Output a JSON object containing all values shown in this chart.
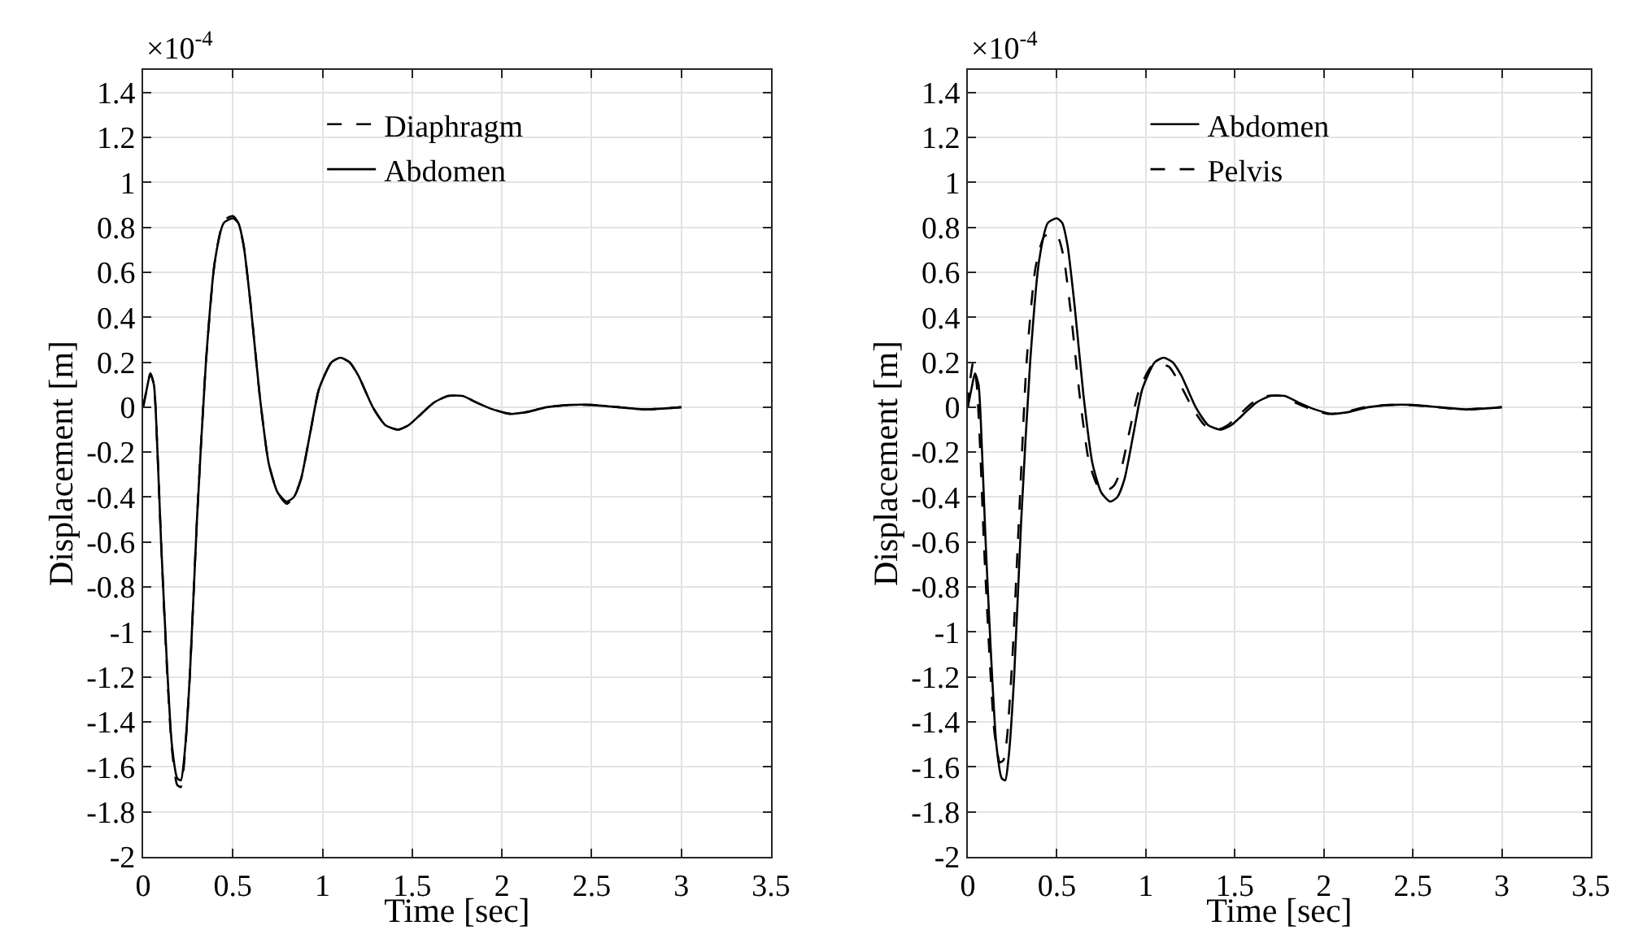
{
  "chart_data": [
    {
      "type": "line",
      "xlabel": "Time [sec]",
      "ylabel": "Displacement [m]",
      "annotations": [
        "×10$^{-4}$"
      ],
      "xlim": [
        0,
        3.5
      ],
      "xticks": [
        0,
        0.5,
        1,
        1.5,
        2,
        2.5,
        3,
        3.5
      ],
      "ylim": [
        -2,
        1.5
      ],
      "yticks": [
        -2,
        -1.8,
        -1.6,
        -1.4,
        -1.2,
        -1,
        -0.8,
        -0.6,
        -0.4,
        -0.2,
        0,
        0.2,
        0.4,
        0.6,
        0.8,
        1,
        1.2,
        1.4
      ],
      "grid": true,
      "legend": "top",
      "series": [
        {
          "name": "Diaphragm",
          "color": "#000000",
          "line_style": "dashed",
          "x": [
            0,
            0.02,
            0.04,
            0.06,
            0.08,
            0.1,
            0.13,
            0.16,
            0.19,
            0.21,
            0.23,
            0.26,
            0.3,
            0.35,
            0.4,
            0.45,
            0.5,
            0.53,
            0.56,
            0.6,
            0.65,
            0.7,
            0.75,
            0.8,
            0.84,
            0.88,
            0.93,
            0.98,
            1.05,
            1.1,
            1.15,
            1.2,
            1.28,
            1.35,
            1.42,
            1.48,
            1.55,
            1.62,
            1.7,
            1.78,
            1.86,
            1.95,
            2.05,
            2.15,
            2.25,
            2.38,
            2.5,
            2.65,
            2.8,
            3
          ],
          "values": [
            0,
            0.08,
            0.15,
            0.1,
            -0.2,
            -0.6,
            -1.12,
            -1.52,
            -1.68,
            -1.69,
            -1.57,
            -1.2,
            -0.5,
            0.2,
            0.65,
            0.83,
            0.85,
            0.82,
            0.72,
            0.45,
            0.05,
            -0.25,
            -0.38,
            -0.43,
            -0.4,
            -0.32,
            -0.12,
            0.08,
            0.2,
            0.22,
            0.2,
            0.14,
            0,
            -0.08,
            -0.1,
            -0.08,
            -0.03,
            0.02,
            0.05,
            0.05,
            0.02,
            -0.01,
            -0.03,
            -0.02,
            0,
            0.01,
            0.01,
            0,
            -0.01,
            0
          ]
        },
        {
          "name": "Abdomen",
          "color": "#000000",
          "line_style": "solid",
          "x": [
            0,
            0.02,
            0.04,
            0.06,
            0.08,
            0.1,
            0.13,
            0.16,
            0.19,
            0.21,
            0.23,
            0.26,
            0.3,
            0.35,
            0.4,
            0.45,
            0.5,
            0.53,
            0.56,
            0.6,
            0.65,
            0.7,
            0.75,
            0.8,
            0.84,
            0.88,
            0.93,
            0.98,
            1.05,
            1.1,
            1.15,
            1.2,
            1.28,
            1.35,
            1.42,
            1.48,
            1.55,
            1.62,
            1.7,
            1.78,
            1.86,
            1.95,
            2.05,
            2.15,
            2.25,
            2.38,
            2.5,
            2.65,
            2.8,
            3
          ],
          "values": [
            0,
            0.08,
            0.15,
            0.1,
            -0.2,
            -0.6,
            -1.1,
            -1.5,
            -1.65,
            -1.66,
            -1.55,
            -1.2,
            -0.5,
            0.2,
            0.65,
            0.82,
            0.84,
            0.82,
            0.72,
            0.45,
            0.05,
            -0.25,
            -0.38,
            -0.42,
            -0.4,
            -0.32,
            -0.12,
            0.08,
            0.2,
            0.22,
            0.2,
            0.14,
            0,
            -0.08,
            -0.1,
            -0.08,
            -0.03,
            0.02,
            0.05,
            0.05,
            0.02,
            -0.01,
            -0.03,
            -0.02,
            0,
            0.01,
            0.01,
            0,
            -0.01,
            0
          ]
        }
      ]
    },
    {
      "type": "line",
      "xlabel": "Time [sec]",
      "ylabel": "Displacement [m]",
      "annotations": [
        "×10$^{-4}$"
      ],
      "xlim": [
        0,
        3.5
      ],
      "xticks": [
        0,
        0.5,
        1,
        1.5,
        2,
        2.5,
        3,
        3.5
      ],
      "ylim": [
        -2,
        1.5
      ],
      "yticks": [
        -2,
        -1.8,
        -1.6,
        -1.4,
        -1.2,
        -1,
        -0.8,
        -0.6,
        -0.4,
        -0.2,
        0,
        0.2,
        0.4,
        0.6,
        0.8,
        1,
        1.2,
        1.4
      ],
      "grid": true,
      "legend": "top",
      "series": [
        {
          "name": "Abdomen",
          "color": "#000000",
          "line_style": "solid",
          "x": [
            0,
            0.02,
            0.04,
            0.06,
            0.08,
            0.1,
            0.13,
            0.16,
            0.19,
            0.21,
            0.23,
            0.26,
            0.3,
            0.35,
            0.4,
            0.45,
            0.5,
            0.53,
            0.56,
            0.6,
            0.65,
            0.7,
            0.75,
            0.8,
            0.84,
            0.88,
            0.93,
            0.98,
            1.05,
            1.1,
            1.15,
            1.2,
            1.28,
            1.35,
            1.42,
            1.48,
            1.55,
            1.62,
            1.7,
            1.78,
            1.86,
            1.95,
            2.05,
            2.15,
            2.25,
            2.38,
            2.5,
            2.65,
            2.8,
            3
          ],
          "values": [
            0,
            0.08,
            0.15,
            0.1,
            -0.2,
            -0.6,
            -1.1,
            -1.5,
            -1.65,
            -1.66,
            -1.55,
            -1.2,
            -0.5,
            0.2,
            0.65,
            0.82,
            0.84,
            0.82,
            0.72,
            0.45,
            0.05,
            -0.25,
            -0.38,
            -0.42,
            -0.4,
            -0.32,
            -0.12,
            0.08,
            0.2,
            0.22,
            0.2,
            0.14,
            0,
            -0.08,
            -0.1,
            -0.08,
            -0.03,
            0.02,
            0.05,
            0.05,
            0.02,
            -0.01,
            -0.03,
            -0.02,
            0,
            0.01,
            0.01,
            0,
            -0.01,
            0
          ]
        },
        {
          "name": "Pelvis",
          "color": "#000000",
          "line_style": "dashed",
          "x": [
            0,
            0.01,
            0.03,
            0.05,
            0.07,
            0.09,
            0.12,
            0.15,
            0.18,
            0.2,
            0.22,
            0.25,
            0.29,
            0.33,
            0.38,
            0.43,
            0.48,
            0.51,
            0.54,
            0.58,
            0.63,
            0.68,
            0.73,
            0.78,
            0.82,
            0.86,
            0.91,
            0.96,
            1.03,
            1.08,
            1.13,
            1.18,
            1.26,
            1.33,
            1.4,
            1.46,
            1.53,
            1.6,
            1.68,
            1.76,
            1.84,
            1.93,
            2.03,
            2.13,
            2.23,
            2.36,
            2.48,
            2.63,
            2.78,
            3
          ],
          "values": [
            0,
            0.1,
            0.2,
            0.1,
            -0.2,
            -0.6,
            -1.08,
            -1.45,
            -1.58,
            -1.57,
            -1.47,
            -1.12,
            -0.45,
            0.2,
            0.62,
            0.76,
            0.77,
            0.75,
            0.66,
            0.41,
            0.04,
            -0.24,
            -0.35,
            -0.37,
            -0.35,
            -0.28,
            -0.1,
            0.07,
            0.18,
            0.19,
            0.18,
            0.12,
            0,
            -0.08,
            -0.1,
            -0.08,
            -0.03,
            0.02,
            0.05,
            0.05,
            0.02,
            -0.01,
            -0.03,
            -0.02,
            0,
            0.01,
            0.01,
            0,
            -0.01,
            0
          ]
        }
      ]
    }
  ]
}
